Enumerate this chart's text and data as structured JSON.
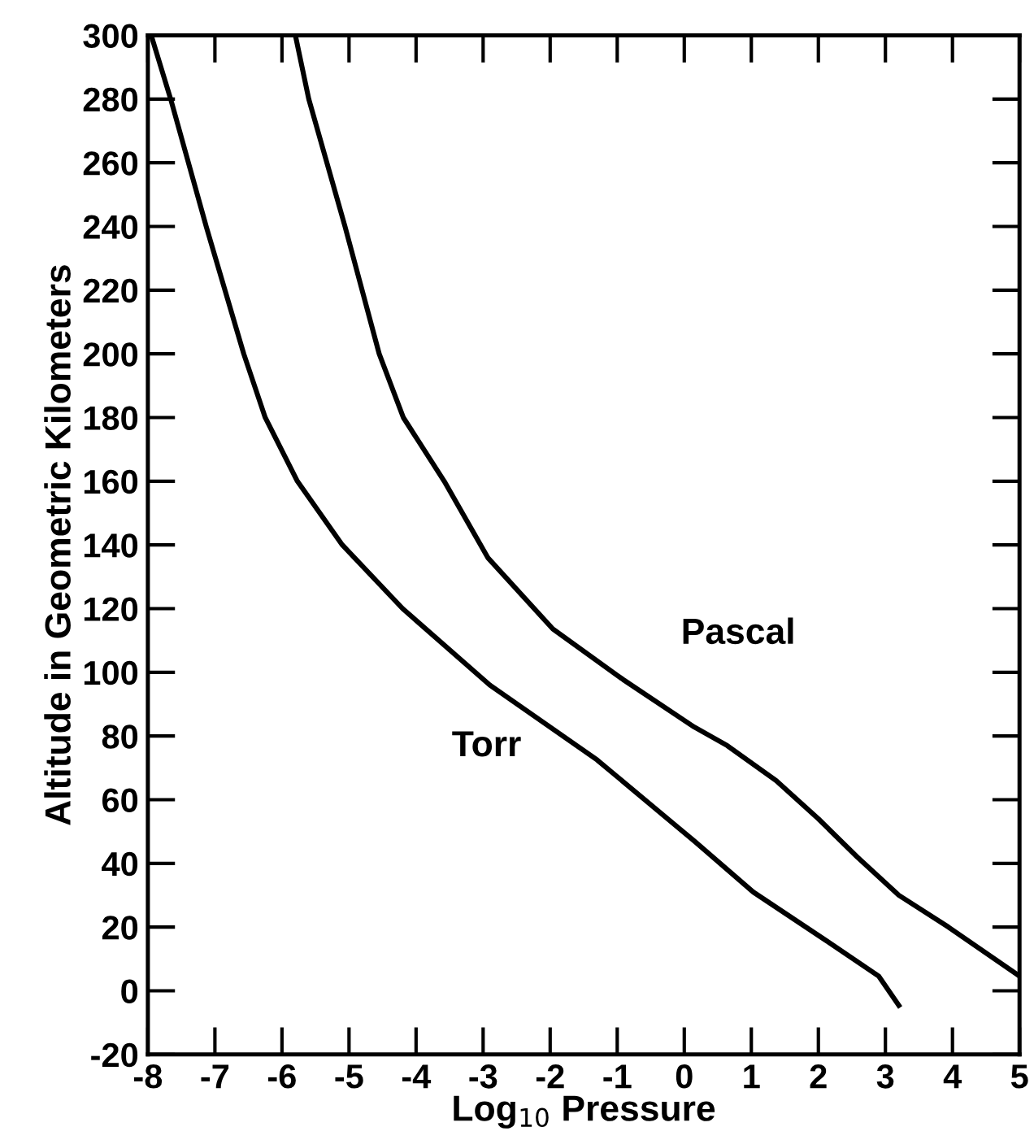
{
  "chart_data": {
    "type": "line",
    "xlabel": "Log$_{10}$ Pressure",
    "ylabel": "Altitude in Geometric Kilometers",
    "xlim": [
      -8,
      5
    ],
    "xticks": [
      -8,
      -7,
      -6,
      -5,
      -4,
      -3,
      -2,
      -1,
      0,
      1,
      2,
      3,
      4,
      5
    ],
    "ylim": [
      -20,
      300
    ],
    "yticks": [
      -20,
      0,
      20,
      40,
      60,
      80,
      100,
      120,
      140,
      160,
      180,
      200,
      220,
      240,
      260,
      280,
      300
    ],
    "grid": false,
    "legend": false,
    "marker": "none",
    "line_style": "solid",
    "series": [
      {
        "name": "Torr",
        "color": "#000000",
        "x": [
          -7.95,
          -7.66,
          -7.13,
          -6.57,
          -6.25,
          -5.77,
          -5.1,
          -4.2,
          -2.9,
          -1.3,
          0.15,
          1.03,
          2.1,
          2.9,
          3.2
        ],
        "values": [
          300,
          280,
          240,
          200,
          180,
          160,
          140,
          120,
          96,
          72.5,
          47,
          31,
          16,
          4.6,
          -4.6
        ]
      },
      {
        "name": "Pascal",
        "color": "#000000",
        "x": [
          -5.8,
          -5.6,
          -5.06,
          -4.55,
          -4.19,
          -3.58,
          -2.93,
          -1.96,
          -0.91,
          0.15,
          0.64,
          1.37,
          2.0,
          2.58,
          3.2,
          3.94,
          5.0
        ],
        "values": [
          300,
          280,
          240,
          200,
          180,
          160,
          136,
          113.6,
          97.7,
          82.8,
          77,
          66,
          54,
          42,
          30,
          20,
          4.6
        ]
      }
    ]
  }
}
